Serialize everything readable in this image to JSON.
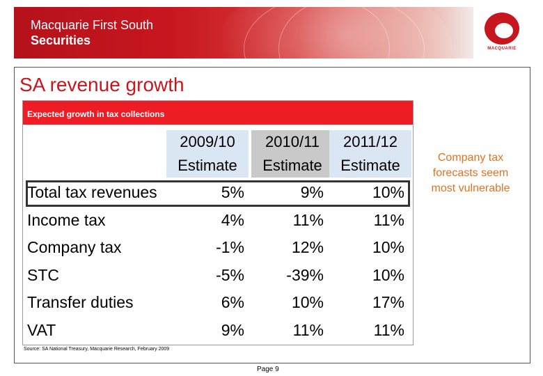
{
  "header": {
    "brand_line1": "Macquarie First South",
    "brand_line2": "Securities",
    "logo_text": "MACQUARIE"
  },
  "slide": {
    "title": "SA revenue growth",
    "panel_title": "Expected growth in tax collections",
    "side_note": "Company tax forecasts seem most vulnerable",
    "source": "Source: SA National Treasury, Macquarie Research, February 2009",
    "page_label": "Page 9"
  },
  "table": {
    "columns": [
      {
        "year": "2009/10",
        "label": "Estimate"
      },
      {
        "year": "2010/11",
        "label": "Estimate"
      },
      {
        "year": "2011/12",
        "label": "Estimate"
      }
    ],
    "rows": [
      {
        "label": "Total tax revenues",
        "values": [
          "5%",
          "9%",
          "10%"
        ]
      },
      {
        "label": "Income tax",
        "values": [
          "4%",
          "11%",
          "11%"
        ]
      },
      {
        "label": "Company tax",
        "values": [
          "-1%",
          "12%",
          "10%"
        ]
      },
      {
        "label": "STC",
        "values": [
          "-5%",
          "-39%",
          "10%"
        ]
      },
      {
        "label": "Transfer duties",
        "values": [
          "6%",
          "10%",
          "17%"
        ]
      },
      {
        "label": "VAT",
        "values": [
          "9%",
          "11%",
          "11%"
        ]
      }
    ]
  },
  "colors": {
    "accent_red": "#ee1c24",
    "title_red": "#c8161f",
    "note_orange": "#e2721e"
  }
}
